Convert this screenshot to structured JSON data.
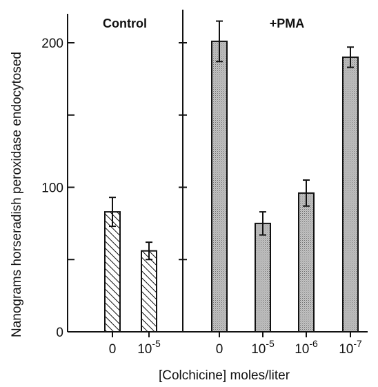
{
  "chart_data": {
    "type": "bar",
    "ylabel": "Nanograms horseradish peroxidase endocytosed",
    "xlabel": "[Colchicine] moles/liter",
    "ylim": [
      0,
      200
    ],
    "yticks": [
      "0",
      "100",
      "200"
    ],
    "groups": [
      {
        "name": "Control",
        "pattern": "hatched",
        "bars": [
          {
            "x_label": "0",
            "value": 83,
            "error": 10
          },
          {
            "x_label": "10⁻⁵",
            "value": 56,
            "error": 6
          }
        ]
      },
      {
        "name": "+PMA",
        "pattern": "stippled-gray",
        "bars": [
          {
            "x_label": "0",
            "value": 201,
            "error": 14
          },
          {
            "x_label": "10⁻⁵",
            "value": 75,
            "error": 8
          },
          {
            "x_label": "10⁻⁶",
            "value": 96,
            "error": 9
          },
          {
            "x_label": "10⁻⁷",
            "value": 190,
            "error": 7
          }
        ]
      }
    ],
    "grid": false,
    "colors": {
      "axis": "#111111",
      "stipple_bar": "#b8b8b8",
      "hatch": "#111111"
    }
  }
}
